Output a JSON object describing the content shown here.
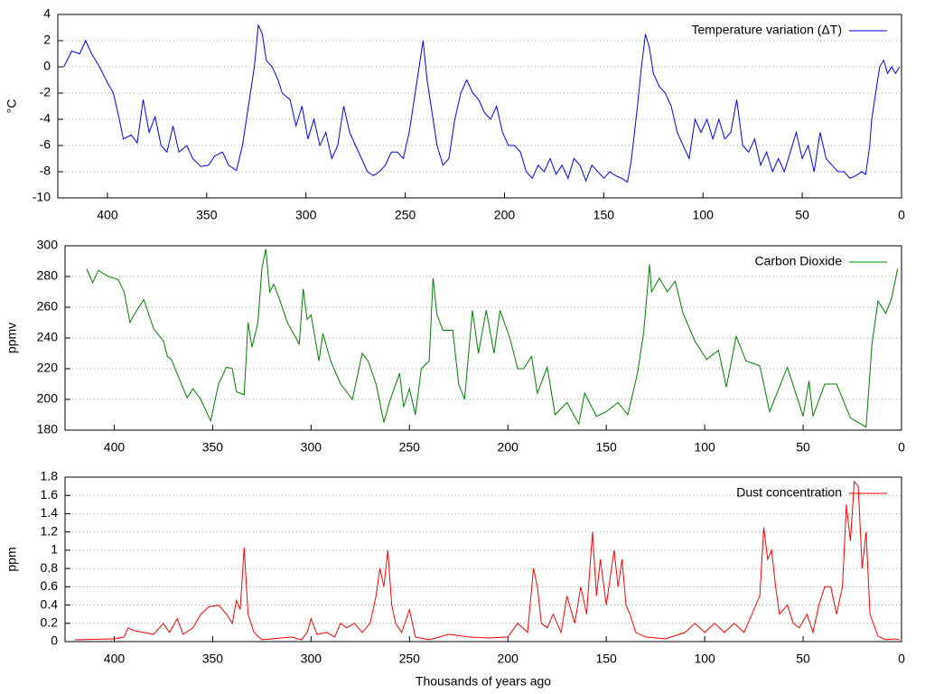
{
  "chart_data": [
    {
      "type": "line",
      "ylabel": "°C",
      "xlim": [
        425,
        0
      ],
      "ylim": [
        -10,
        4
      ],
      "xticks": [
        400,
        350,
        300,
        250,
        200,
        150,
        100,
        50,
        0
      ],
      "yticks": [
        4,
        2,
        0,
        -2,
        -4,
        -6,
        -8,
        -10
      ],
      "grid": true,
      "legend": "top right",
      "x": [
        422,
        418,
        414,
        411,
        408,
        404,
        400,
        397,
        394,
        392,
        388,
        385,
        382,
        379,
        376,
        373,
        370,
        367,
        364,
        360,
        357,
        353,
        349,
        346,
        342,
        339,
        335,
        332,
        329,
        326,
        324,
        322,
        320,
        317,
        314,
        312,
        308,
        305,
        302,
        299,
        296,
        293,
        290,
        287,
        284,
        281,
        278,
        275,
        272,
        269,
        266,
        263,
        260,
        257,
        254,
        251,
        248,
        245,
        243,
        241,
        239,
        237,
        234,
        231,
        228,
        225,
        222,
        219,
        216,
        213,
        210,
        207,
        204,
        201,
        198,
        195,
        192,
        189,
        186,
        183,
        180,
        177,
        174,
        171,
        168,
        165,
        162,
        159,
        156,
        153,
        150,
        147,
        144,
        141,
        138,
        136,
        133,
        131,
        129,
        127,
        125,
        122,
        119,
        116,
        113,
        110,
        107,
        104,
        101,
        98,
        95,
        92,
        89,
        86,
        83,
        80,
        77,
        74,
        71,
        68,
        65,
        62,
        59,
        56,
        53,
        50,
        47,
        44,
        41,
        38,
        35,
        32,
        29,
        26,
        23,
        20,
        18,
        16,
        15,
        13,
        11,
        9,
        7,
        5,
        3,
        1
      ],
      "series": [
        {
          "name": "Temperature variation (ΔT)",
          "color": "#0000ff",
          "values": [
            0,
            1.2,
            1.0,
            2.0,
            1.0,
            0,
            -1.2,
            -2,
            -4,
            -5.5,
            -5.2,
            -5.8,
            -2.5,
            -5,
            -3.8,
            -6,
            -6.5,
            -4.5,
            -6.5,
            -6,
            -7,
            -7.6,
            -7.5,
            -6.8,
            -6.5,
            -7.5,
            -7.9,
            -6,
            -3,
            0,
            3.2,
            2.5,
            0.5,
            0,
            -1,
            -2,
            -2.5,
            -4.5,
            -3,
            -5.5,
            -4,
            -6,
            -5,
            -7,
            -6,
            -3,
            -5,
            -6,
            -7,
            -8,
            -8.3,
            -8,
            -7.5,
            -6.5,
            -6.5,
            -7,
            -5,
            -2,
            0,
            2,
            -1,
            -3,
            -6,
            -7.5,
            -7,
            -4,
            -2,
            -1,
            -2,
            -2.5,
            -3.5,
            -4,
            -3,
            -5,
            -6,
            -6,
            -6.5,
            -8,
            -8.5,
            -7.5,
            -8,
            -7,
            -8.2,
            -7.5,
            -8.5,
            -7,
            -7.5,
            -8.7,
            -7.5,
            -8,
            -8.5,
            -8,
            -8.3,
            -8.5,
            -8.8,
            -7,
            -3,
            0,
            2.5,
            1.5,
            -0.5,
            -1.5,
            -2,
            -3,
            -5,
            -6,
            -7,
            -4,
            -5,
            -4,
            -5.5,
            -4,
            -5.5,
            -5,
            -2.5,
            -6,
            -6.5,
            -5.5,
            -7.5,
            -6.5,
            -8,
            -7,
            -8,
            -6.5,
            -5,
            -7,
            -6,
            -8,
            -5,
            -7,
            -7.5,
            -8,
            -8,
            -8.5,
            -8.3,
            -8,
            -8.2,
            -6,
            -4,
            -2,
            0,
            0.5,
            -0.5,
            0,
            -0.5,
            0
          ]
        }
      ]
    },
    {
      "type": "line",
      "ylabel": "ppmv",
      "xlim": [
        425,
        0
      ],
      "ylim": [
        180,
        300
      ],
      "xticks": [
        400,
        350,
        300,
        250,
        200,
        150,
        100,
        50,
        0
      ],
      "yticks": [
        300,
        280,
        260,
        240,
        220,
        200,
        180
      ],
      "grid": true,
      "legend": "top right",
      "x": [
        414,
        411,
        408,
        403,
        398,
        395,
        392,
        390,
        385,
        380,
        375,
        373,
        371,
        363,
        360,
        356,
        351,
        347,
        343,
        340,
        338,
        334,
        332,
        330,
        327,
        325,
        323,
        321,
        319,
        316,
        312,
        306,
        304,
        302,
        300,
        296,
        294,
        290,
        285,
        279,
        274,
        271,
        267,
        263,
        260,
        255,
        253,
        250,
        247,
        244,
        240,
        238,
        236,
        233,
        228,
        225,
        222,
        218,
        215,
        211,
        207,
        204,
        199,
        195,
        192,
        188,
        185,
        180,
        176,
        170,
        164,
        161,
        155,
        150,
        144,
        139,
        134,
        131,
        128,
        127,
        123,
        119,
        115,
        111,
        105,
        99,
        93,
        89,
        84,
        79,
        72,
        67,
        58,
        50,
        47,
        45,
        39,
        33,
        26,
        18,
        15,
        12,
        8,
        5,
        2
      ],
      "series": [
        {
          "name": "Carbon Dioxide",
          "color": "#008000",
          "values": [
            285,
            276,
            284,
            280,
            278,
            270,
            250,
            255,
            265,
            246,
            238,
            228,
            226,
            201,
            207,
            200,
            186,
            210,
            221,
            220,
            205,
            203,
            250,
            234,
            250,
            285,
            298,
            270,
            275,
            265,
            250,
            236,
            272,
            252,
            255,
            225,
            243,
            225,
            210,
            200,
            230,
            225,
            210,
            185,
            199,
            217,
            195,
            207,
            190,
            220,
            225,
            279,
            255,
            245,
            245,
            210,
            200,
            258,
            230,
            258,
            230,
            258,
            240,
            220,
            220,
            228,
            204,
            221,
            190,
            198,
            184,
            204,
            189,
            192,
            198,
            190,
            218,
            244,
            288,
            270,
            279,
            270,
            277,
            256,
            238,
            226,
            232,
            208,
            241,
            225,
            222,
            192,
            221,
            189,
            212,
            189,
            210,
            210,
            188,
            182,
            236,
            264,
            256,
            266,
            285
          ]
        }
      ]
    },
    {
      "type": "line",
      "ylabel": "ppm",
      "xlabel": "Thousands of years ago",
      "xlim": [
        425,
        0
      ],
      "ylim": [
        0,
        1.8
      ],
      "xticks": [
        400,
        350,
        300,
        250,
        200,
        150,
        100,
        50,
        0
      ],
      "yticks": [
        1.8,
        1.6,
        1.4,
        1.2,
        1,
        0.8,
        0.6,
        0.4,
        0.2,
        0
      ],
      "grid": true,
      "legend": "top right",
      "x": [
        420,
        400,
        395,
        393,
        390,
        385,
        380,
        375,
        372,
        368,
        365,
        360,
        356,
        352,
        347,
        343,
        340,
        338,
        336,
        334,
        332,
        329,
        325,
        320,
        310,
        305,
        302,
        300,
        297,
        292,
        288,
        285,
        282,
        278,
        274,
        270,
        267,
        265,
        263,
        261,
        259,
        257,
        254,
        250,
        247,
        240,
        230,
        220,
        210,
        200,
        195,
        190,
        187,
        185,
        183,
        180,
        177,
        173,
        170,
        166,
        163,
        160,
        157,
        155,
        153,
        150,
        148,
        146,
        144,
        142,
        140,
        138,
        135,
        130,
        120,
        110,
        105,
        100,
        95,
        90,
        85,
        80,
        72,
        70,
        68,
        66,
        64,
        62,
        58,
        55,
        52,
        48,
        45,
        42,
        39,
        36,
        33,
        30,
        28,
        26,
        24,
        22,
        20,
        18,
        16,
        12,
        8,
        3,
        1
      ],
      "series": [
        {
          "name": "Dust concentration",
          "color": "#ff0000",
          "values": [
            0.02,
            0.03,
            0.05,
            0.15,
            0.12,
            0.1,
            0.08,
            0.2,
            0.1,
            0.25,
            0.08,
            0.15,
            0.3,
            0.38,
            0.4,
            0.3,
            0.2,
            0.45,
            0.35,
            1.03,
            0.3,
            0.1,
            0.02,
            0.03,
            0.05,
            0.02,
            0.1,
            0.25,
            0.08,
            0.1,
            0.05,
            0.2,
            0.15,
            0.2,
            0.1,
            0.2,
            0.5,
            0.8,
            0.6,
            1.0,
            0.4,
            0.2,
            0.1,
            0.35,
            0.05,
            0.02,
            0.08,
            0.05,
            0.04,
            0.05,
            0.2,
            0.1,
            0.8,
            0.6,
            0.2,
            0.15,
            0.3,
            0.1,
            0.5,
            0.2,
            0.6,
            0.3,
            1.2,
            0.5,
            0.9,
            0.4,
            0.7,
            1.0,
            0.6,
            0.9,
            0.4,
            0.3,
            0.1,
            0.05,
            0.03,
            0.1,
            0.2,
            0.1,
            0.2,
            0.1,
            0.2,
            0.1,
            0.5,
            1.25,
            0.9,
            1.0,
            0.6,
            0.3,
            0.4,
            0.2,
            0.15,
            0.3,
            0.1,
            0.4,
            0.6,
            0.6,
            0.3,
            0.6,
            1.5,
            1.1,
            1.75,
            1.7,
            0.8,
            1.2,
            0.3,
            0.06,
            0.02,
            0.03,
            0.02
          ]
        }
      ]
    }
  ]
}
